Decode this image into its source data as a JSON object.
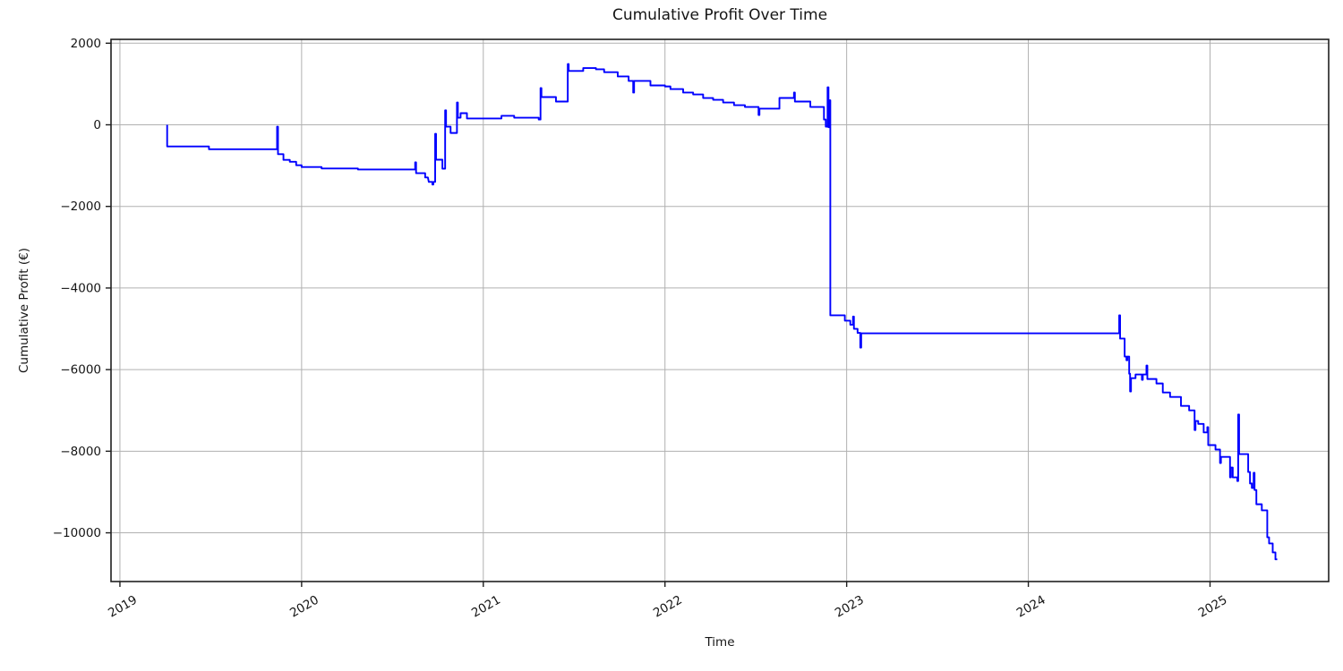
{
  "figure": {
    "background": "#ffffff"
  },
  "chart_data": {
    "type": "line",
    "title": "Cumulative Profit Over Time",
    "xlabel": "Time",
    "ylabel": "Cumulative Profit (€)",
    "grid": true,
    "grid_color": "#b0b0b0",
    "spine_color": "#1f1f1f",
    "tick_color": "#1f1f1f",
    "legend": null,
    "xlim": [
      2018.951,
      2025.653
    ],
    "ylim": [
      -11194,
      2094
    ],
    "xticks": {
      "values": [
        2019,
        2020,
        2021,
        2022,
        2023,
        2024,
        2025
      ],
      "labels": [
        "2019",
        "2020",
        "2021",
        "2022",
        "2023",
        "2024",
        "2025"
      ]
    },
    "yticks": {
      "values": [
        2000,
        0,
        -2000,
        -4000,
        -6000,
        -8000,
        -10000
      ],
      "labels": [
        "2000",
        "0",
        "−2000",
        "−4000",
        "−6000",
        "−8000",
        "−10000"
      ]
    },
    "series": [
      {
        "name": "cumulative-profit",
        "color": "#0000ff",
        "line_width": 1.9,
        "points": [
          [
            2019.26,
            0
          ],
          [
            2019.26,
            -530
          ],
          [
            2019.49,
            -530
          ],
          [
            2019.49,
            -600
          ],
          [
            2019.865,
            -600
          ],
          [
            2019.865,
            -45
          ],
          [
            2019.87,
            -45
          ],
          [
            2019.87,
            -720
          ],
          [
            2019.9,
            -720
          ],
          [
            2019.9,
            -860
          ],
          [
            2019.935,
            -860
          ],
          [
            2019.935,
            -905
          ],
          [
            2019.97,
            -905
          ],
          [
            2019.97,
            -990
          ],
          [
            2020.0,
            -990
          ],
          [
            2020.0,
            -1035
          ],
          [
            2020.11,
            -1035
          ],
          [
            2020.11,
            -1070
          ],
          [
            2020.31,
            -1070
          ],
          [
            2020.31,
            -1095
          ],
          [
            2020.625,
            -1095
          ],
          [
            2020.625,
            -920
          ],
          [
            2020.63,
            -920
          ],
          [
            2020.63,
            -1185
          ],
          [
            2020.68,
            -1185
          ],
          [
            2020.68,
            -1290
          ],
          [
            2020.695,
            -1290
          ],
          [
            2020.7,
            -1400
          ],
          [
            2020.72,
            -1400
          ],
          [
            2020.72,
            -1465
          ],
          [
            2020.725,
            -1465
          ],
          [
            2020.725,
            -1400
          ],
          [
            2020.735,
            -1400
          ],
          [
            2020.735,
            -220
          ],
          [
            2020.74,
            -220
          ],
          [
            2020.74,
            -855
          ],
          [
            2020.775,
            -855
          ],
          [
            2020.775,
            -1075
          ],
          [
            2020.785,
            -1075
          ],
          [
            2020.79,
            -1075
          ],
          [
            2020.79,
            355
          ],
          [
            2020.795,
            355
          ],
          [
            2020.795,
            -45
          ],
          [
            2020.82,
            -45
          ],
          [
            2020.82,
            -200
          ],
          [
            2020.855,
            -200
          ],
          [
            2020.855,
            547
          ],
          [
            2020.86,
            547
          ],
          [
            2020.86,
            175
          ],
          [
            2020.875,
            175
          ],
          [
            2020.875,
            285
          ],
          [
            2020.91,
            285
          ],
          [
            2020.91,
            155
          ],
          [
            2021.1,
            155
          ],
          [
            2021.1,
            220
          ],
          [
            2021.17,
            220
          ],
          [
            2021.17,
            175
          ],
          [
            2021.305,
            175
          ],
          [
            2021.305,
            130
          ],
          [
            2021.315,
            130
          ],
          [
            2021.315,
            900
          ],
          [
            2021.32,
            900
          ],
          [
            2021.32,
            680
          ],
          [
            2021.4,
            680
          ],
          [
            2021.4,
            570
          ],
          [
            2021.465,
            570
          ],
          [
            2021.465,
            1490
          ],
          [
            2021.47,
            1490
          ],
          [
            2021.47,
            1320
          ],
          [
            2021.55,
            1320
          ],
          [
            2021.55,
            1390
          ],
          [
            2021.62,
            1390
          ],
          [
            2021.62,
            1360
          ],
          [
            2021.665,
            1360
          ],
          [
            2021.665,
            1290
          ],
          [
            2021.74,
            1290
          ],
          [
            2021.74,
            1185
          ],
          [
            2021.8,
            1185
          ],
          [
            2021.8,
            1075
          ],
          [
            2021.825,
            1075
          ],
          [
            2021.825,
            790
          ],
          [
            2021.83,
            790
          ],
          [
            2021.83,
            1075
          ],
          [
            2021.92,
            1075
          ],
          [
            2021.92,
            965
          ],
          [
            2022.0,
            965
          ],
          [
            2022.0,
            940
          ],
          [
            2022.03,
            940
          ],
          [
            2022.03,
            875
          ],
          [
            2022.1,
            875
          ],
          [
            2022.1,
            790
          ],
          [
            2022.155,
            790
          ],
          [
            2022.155,
            745
          ],
          [
            2022.21,
            745
          ],
          [
            2022.21,
            657
          ],
          [
            2022.265,
            657
          ],
          [
            2022.265,
            613
          ],
          [
            2022.32,
            613
          ],
          [
            2022.32,
            547
          ],
          [
            2022.38,
            547
          ],
          [
            2022.38,
            482
          ],
          [
            2022.44,
            482
          ],
          [
            2022.44,
            438
          ],
          [
            2022.515,
            438
          ],
          [
            2022.515,
            241
          ],
          [
            2022.52,
            241
          ],
          [
            2022.52,
            395
          ],
          [
            2022.63,
            395
          ],
          [
            2022.63,
            658
          ],
          [
            2022.71,
            658
          ],
          [
            2022.71,
            790
          ],
          [
            2022.715,
            790
          ],
          [
            2022.715,
            570
          ],
          [
            2022.8,
            570
          ],
          [
            2022.8,
            438
          ],
          [
            2022.875,
            438
          ],
          [
            2022.875,
            130
          ],
          [
            2022.885,
            130
          ],
          [
            2022.885,
            -44
          ],
          [
            2022.895,
            -44
          ],
          [
            2022.895,
            920
          ],
          [
            2022.9,
            920
          ],
          [
            2022.9,
            -60
          ],
          [
            2022.902,
            -60
          ],
          [
            2022.902,
            600
          ],
          [
            2022.906,
            600
          ],
          [
            2022.91,
            600
          ],
          [
            2022.91,
            -4670
          ],
          [
            2022.99,
            -4670
          ],
          [
            2022.99,
            -4800
          ],
          [
            2023.02,
            -4800
          ],
          [
            2023.02,
            -4900
          ],
          [
            2023.035,
            -4900
          ],
          [
            2023.035,
            -4700
          ],
          [
            2023.04,
            -4700
          ],
          [
            2023.04,
            -5000
          ],
          [
            2023.06,
            -5000
          ],
          [
            2023.06,
            -5100
          ],
          [
            2023.075,
            -5100
          ],
          [
            2023.075,
            -5460
          ],
          [
            2023.08,
            -5460
          ],
          [
            2023.08,
            -5110
          ],
          [
            2024.5,
            -5110
          ],
          [
            2024.5,
            -4670
          ],
          [
            2024.505,
            -4670
          ],
          [
            2024.505,
            -5240
          ],
          [
            2024.53,
            -5240
          ],
          [
            2024.53,
            -5680
          ],
          [
            2024.54,
            -5680
          ],
          [
            2024.54,
            -5770
          ],
          [
            2024.545,
            -5770
          ],
          [
            2024.545,
            -5680
          ],
          [
            2024.555,
            -5680
          ],
          [
            2024.555,
            -6100
          ],
          [
            2024.56,
            -6100
          ],
          [
            2024.56,
            -6535
          ],
          [
            2024.565,
            -6535
          ],
          [
            2024.565,
            -6210
          ],
          [
            2024.59,
            -6210
          ],
          [
            2024.59,
            -6120
          ],
          [
            2024.625,
            -6120
          ],
          [
            2024.625,
            -6250
          ],
          [
            2024.63,
            -6250
          ],
          [
            2024.63,
            -6120
          ],
          [
            2024.65,
            -6120
          ],
          [
            2024.65,
            -5900
          ],
          [
            2024.655,
            -5900
          ],
          [
            2024.655,
            -6230
          ],
          [
            2024.705,
            -6230
          ],
          [
            2024.705,
            -6340
          ],
          [
            2024.74,
            -6340
          ],
          [
            2024.74,
            -6560
          ],
          [
            2024.78,
            -6560
          ],
          [
            2024.78,
            -6670
          ],
          [
            2024.84,
            -6670
          ],
          [
            2024.84,
            -6890
          ],
          [
            2024.885,
            -6890
          ],
          [
            2024.885,
            -7000
          ],
          [
            2024.915,
            -7000
          ],
          [
            2024.915,
            -7480
          ],
          [
            2024.92,
            -7480
          ],
          [
            2024.92,
            -7260
          ],
          [
            2024.935,
            -7260
          ],
          [
            2024.935,
            -7330
          ],
          [
            2024.965,
            -7330
          ],
          [
            2024.965,
            -7540
          ],
          [
            2024.985,
            -7540
          ],
          [
            2024.985,
            -7410
          ],
          [
            2024.99,
            -7410
          ],
          [
            2024.99,
            -7850
          ],
          [
            2025.03,
            -7850
          ],
          [
            2025.03,
            -7960
          ],
          [
            2025.055,
            -7960
          ],
          [
            2025.055,
            -8290
          ],
          [
            2025.06,
            -8290
          ],
          [
            2025.06,
            -8140
          ],
          [
            2025.11,
            -8140
          ],
          [
            2025.11,
            -8640
          ],
          [
            2025.115,
            -8640
          ],
          [
            2025.115,
            -8400
          ],
          [
            2025.125,
            -8400
          ],
          [
            2025.125,
            -8640
          ],
          [
            2025.15,
            -8640
          ],
          [
            2025.15,
            -8730
          ],
          [
            2025.155,
            -8730
          ],
          [
            2025.155,
            -7100
          ],
          [
            2025.16,
            -7100
          ],
          [
            2025.16,
            -8070
          ],
          [
            2025.21,
            -8070
          ],
          [
            2025.21,
            -8510
          ],
          [
            2025.22,
            -8510
          ],
          [
            2025.22,
            -8790
          ],
          [
            2025.23,
            -8790
          ],
          [
            2025.23,
            -8900
          ],
          [
            2025.24,
            -8900
          ],
          [
            2025.24,
            -8530
          ],
          [
            2025.245,
            -8530
          ],
          [
            2025.245,
            -8950
          ],
          [
            2025.255,
            -8950
          ],
          [
            2025.255,
            -9300
          ],
          [
            2025.285,
            -9300
          ],
          [
            2025.285,
            -9450
          ],
          [
            2025.315,
            -9450
          ],
          [
            2025.315,
            -10110
          ],
          [
            2025.325,
            -10110
          ],
          [
            2025.325,
            -10260
          ],
          [
            2025.345,
            -10260
          ],
          [
            2025.345,
            -10480
          ],
          [
            2025.36,
            -10480
          ],
          [
            2025.36,
            -10650
          ],
          [
            2025.37,
            -10650
          ]
        ]
      }
    ]
  }
}
